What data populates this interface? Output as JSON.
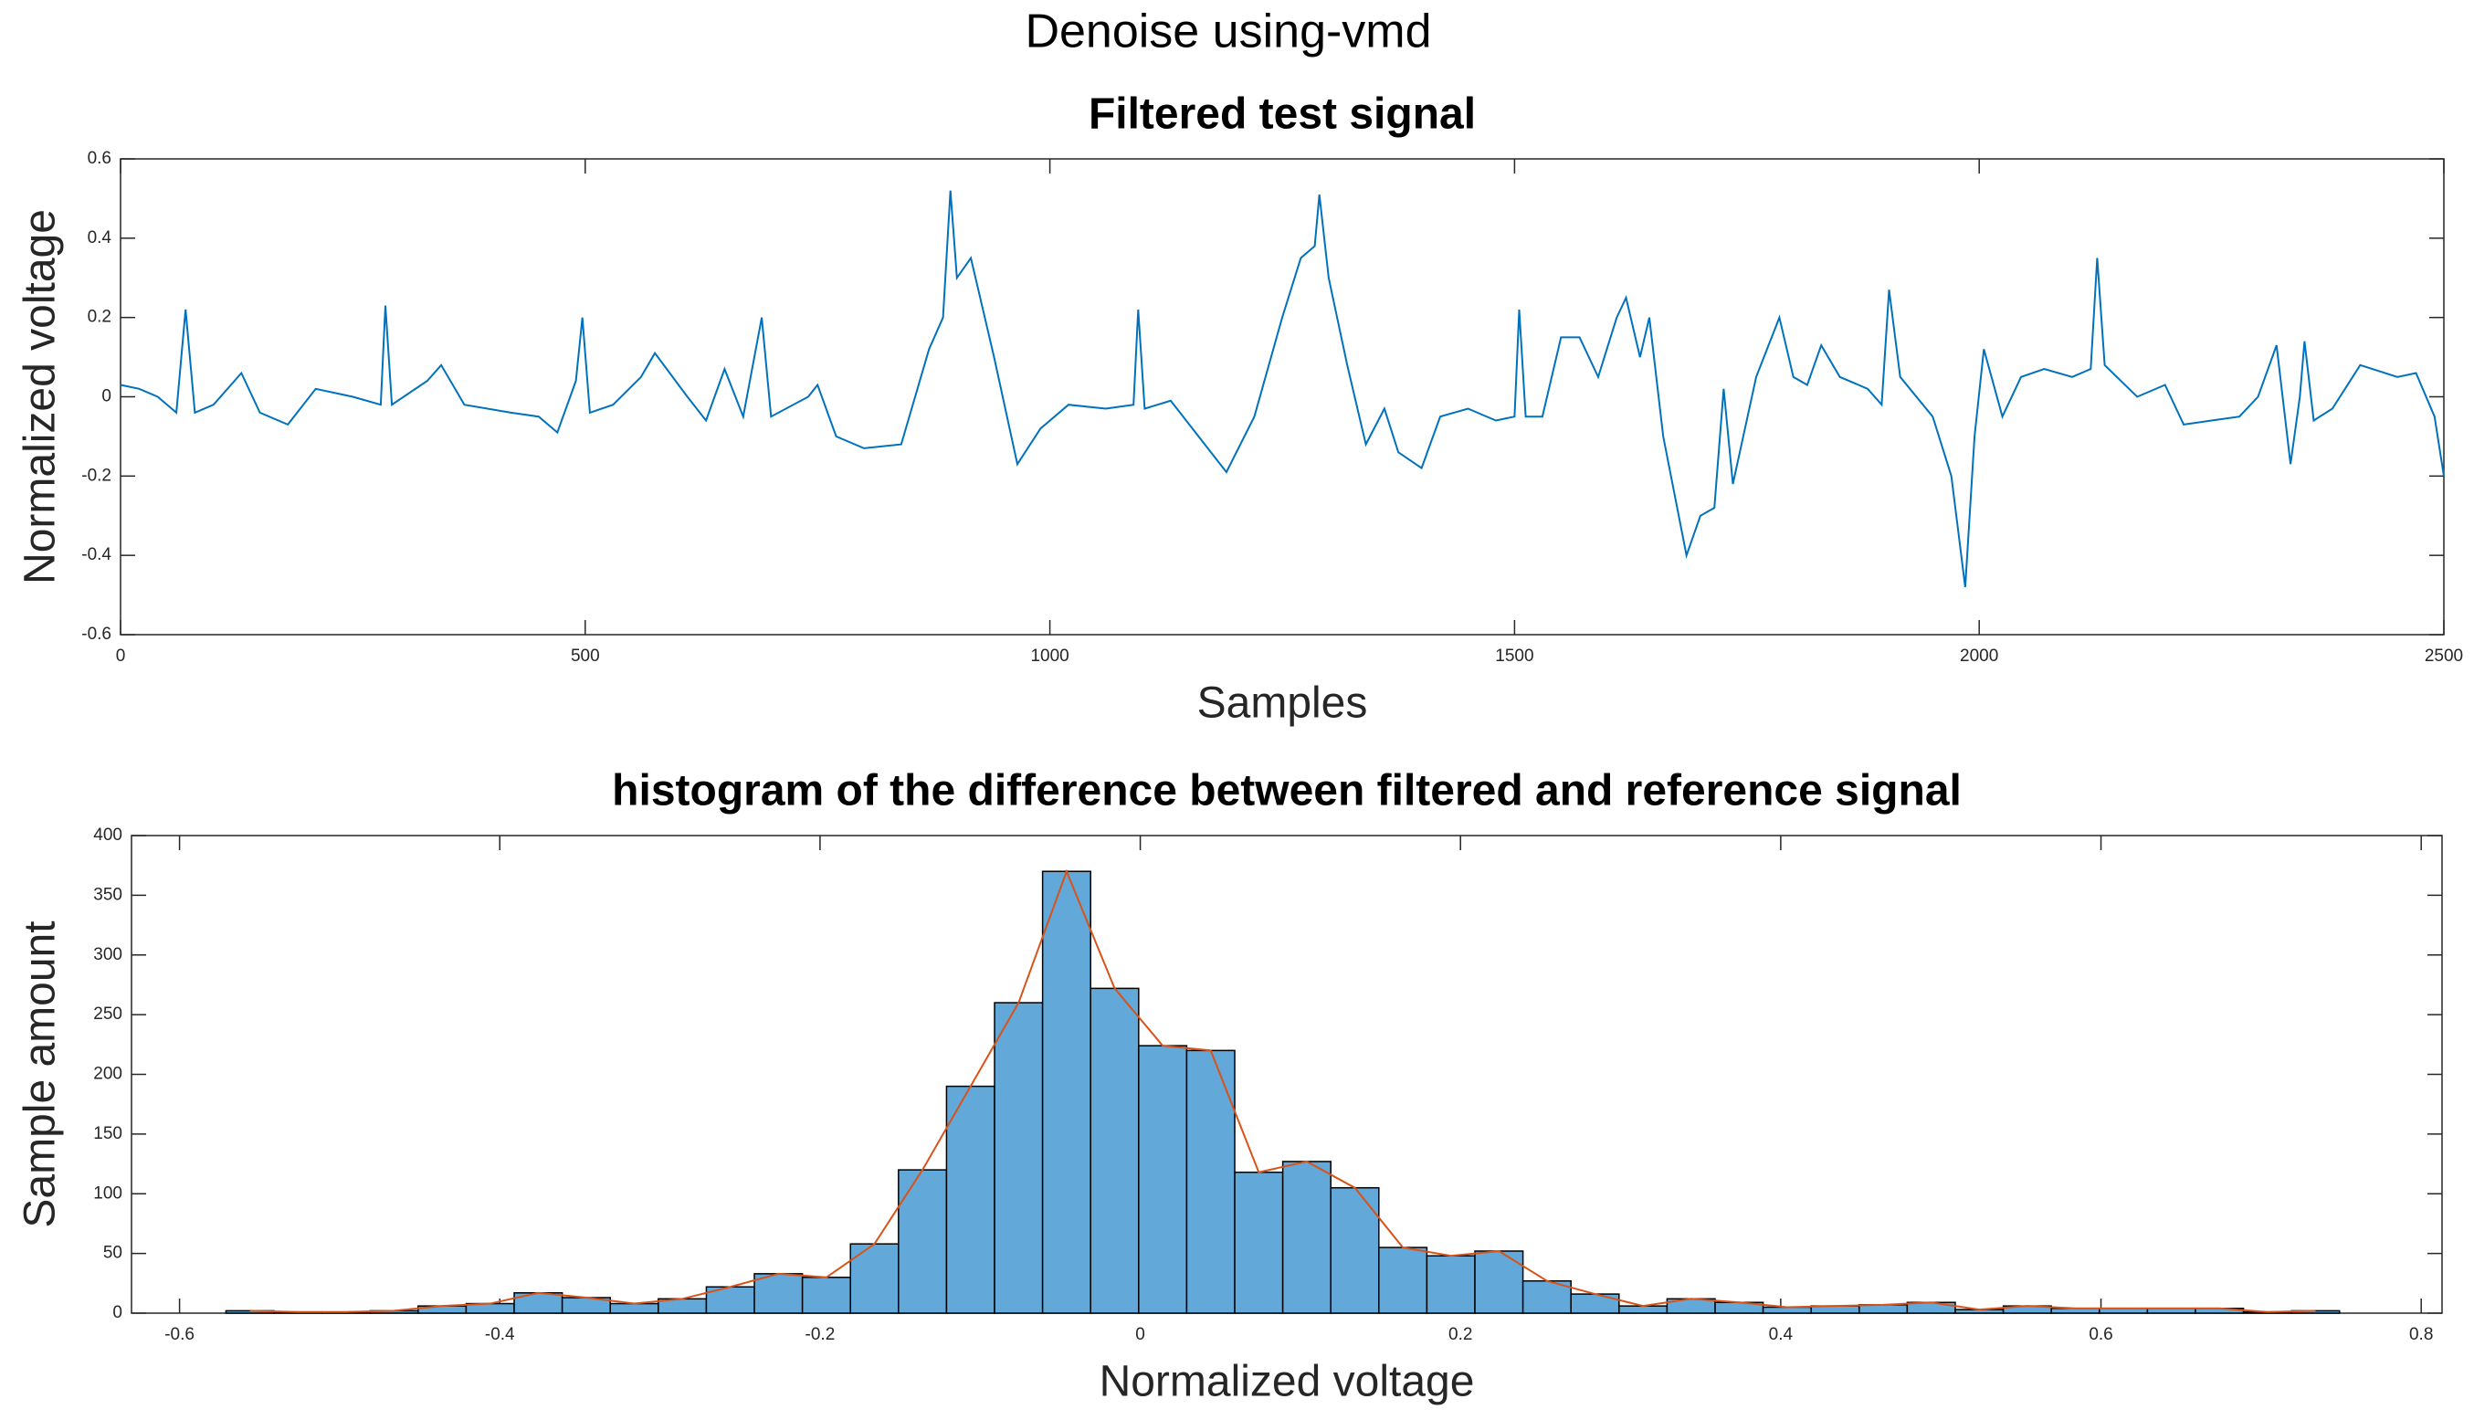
{
  "title": "Denoise using-vmd",
  "chart_data": [
    {
      "type": "line",
      "title": "Filtered test signal",
      "xlabel": "Samples",
      "ylabel": "Normalized voltage",
      "color": "#0072bd",
      "x": [
        0,
        20,
        40,
        60,
        70,
        80,
        100,
        130,
        150,
        180,
        210,
        250,
        280,
        285,
        292,
        330,
        345,
        370,
        420,
        450,
        470,
        490,
        497,
        505,
        530,
        560,
        575,
        610,
        630,
        650,
        670,
        690,
        700,
        740,
        750,
        770,
        800,
        840,
        870,
        885,
        893,
        900,
        915,
        940,
        965,
        990,
        1020,
        1060,
        1090,
        1095,
        1102,
        1130,
        1160,
        1190,
        1220,
        1250,
        1270,
        1285,
        1290,
        1300,
        1320,
        1340,
        1360,
        1375,
        1400,
        1420,
        1450,
        1480,
        1500,
        1505,
        1512,
        1530,
        1550,
        1570,
        1590,
        1610,
        1620,
        1635,
        1645,
        1660,
        1685,
        1700,
        1715,
        1725,
        1735,
        1760,
        1785,
        1800,
        1815,
        1830,
        1850,
        1880,
        1895,
        1903,
        1915,
        1950,
        1970,
        1985,
        1995,
        2005,
        2025,
        2045,
        2070,
        2100,
        2120,
        2127,
        2135,
        2170,
        2200,
        2220,
        2250,
        2280,
        2300,
        2320,
        2335,
        2345,
        2350,
        2360,
        2380,
        2410,
        2450,
        2470,
        2490,
        2500
      ],
      "values": [
        0.03,
        0.02,
        0.0,
        -0.04,
        0.22,
        -0.04,
        -0.02,
        0.06,
        -0.04,
        -0.07,
        0.02,
        0.0,
        -0.02,
        0.23,
        -0.02,
        0.04,
        0.08,
        -0.02,
        -0.04,
        -0.05,
        -0.09,
        0.04,
        0.2,
        -0.04,
        -0.02,
        0.05,
        0.11,
        0.0,
        -0.06,
        0.07,
        -0.05,
        0.2,
        -0.05,
        0.0,
        0.03,
        -0.1,
        -0.13,
        -0.12,
        0.12,
        0.2,
        0.52,
        0.3,
        0.35,
        0.1,
        -0.17,
        -0.08,
        -0.02,
        -0.03,
        -0.02,
        0.22,
        -0.03,
        -0.01,
        -0.1,
        -0.19,
        -0.05,
        0.2,
        0.35,
        0.38,
        0.51,
        0.3,
        0.08,
        -0.12,
        -0.03,
        -0.14,
        -0.18,
        -0.05,
        -0.03,
        -0.06,
        -0.05,
        0.22,
        -0.05,
        -0.05,
        0.15,
        0.15,
        0.05,
        0.2,
        0.25,
        0.1,
        0.2,
        -0.1,
        -0.4,
        -0.3,
        -0.28,
        0.02,
        -0.22,
        0.05,
        0.2,
        0.05,
        0.03,
        0.13,
        0.05,
        0.02,
        -0.02,
        0.27,
        0.05,
        -0.05,
        -0.2,
        -0.48,
        -0.1,
        0.12,
        -0.05,
        0.05,
        0.07,
        0.05,
        0.07,
        0.35,
        0.08,
        0.0,
        0.03,
        -0.07,
        -0.06,
        -0.05,
        0.0,
        0.13,
        -0.17,
        0.0,
        0.14,
        -0.06,
        -0.03,
        0.08,
        0.05,
        0.06,
        -0.05,
        -0.2
      ],
      "xlim": [
        0,
        2500
      ],
      "xticks": [
        0,
        500,
        1000,
        1500,
        2000,
        2500
      ],
      "ylim": [
        -0.6,
        0.6
      ],
      "yticks": [
        -0.6,
        -0.4,
        -0.2,
        0,
        0.2,
        0.4,
        0.6
      ]
    },
    {
      "type": "histogram",
      "title": "histogram of the difference between filtered and reference signal",
      "xlabel": "Normalized voltage",
      "ylabel": "Sample amount",
      "color": "#62a8d8",
      "edge_color": "#000000",
      "line_color": "#d95319",
      "bins": [
        -0.571,
        -0.541,
        -0.511,
        -0.481,
        -0.451,
        -0.421,
        -0.391,
        -0.361,
        -0.331,
        -0.301,
        -0.271,
        -0.241,
        -0.211,
        -0.181,
        -0.151,
        -0.121,
        -0.091,
        -0.061,
        -0.031,
        -0.001,
        0.029,
        0.059,
        0.089,
        0.119,
        0.149,
        0.179,
        0.209,
        0.239,
        0.269,
        0.299,
        0.329,
        0.359,
        0.389,
        0.419,
        0.449,
        0.479,
        0.509,
        0.539,
        0.569,
        0.599,
        0.629,
        0.659,
        0.689,
        0.719,
        0.749
      ],
      "counts": [
        2,
        1,
        1,
        2,
        6,
        8,
        17,
        13,
        8,
        12,
        22,
        33,
        30,
        58,
        120,
        190,
        260,
        370,
        272,
        224,
        220,
        118,
        127,
        105,
        55,
        48,
        52,
        27,
        16,
        6,
        12,
        9,
        5,
        6,
        7,
        9,
        3,
        6,
        4,
        4,
        4,
        4,
        1,
        2
      ],
      "xlim": [
        -0.63,
        0.813
      ],
      "xticks": [
        -0.6,
        -0.4,
        -0.2,
        0,
        0.2,
        0.4,
        0.6,
        0.8
      ],
      "ylim": [
        0,
        400
      ],
      "yticks": [
        0,
        50,
        100,
        150,
        200,
        250,
        300,
        350,
        400
      ]
    }
  ]
}
